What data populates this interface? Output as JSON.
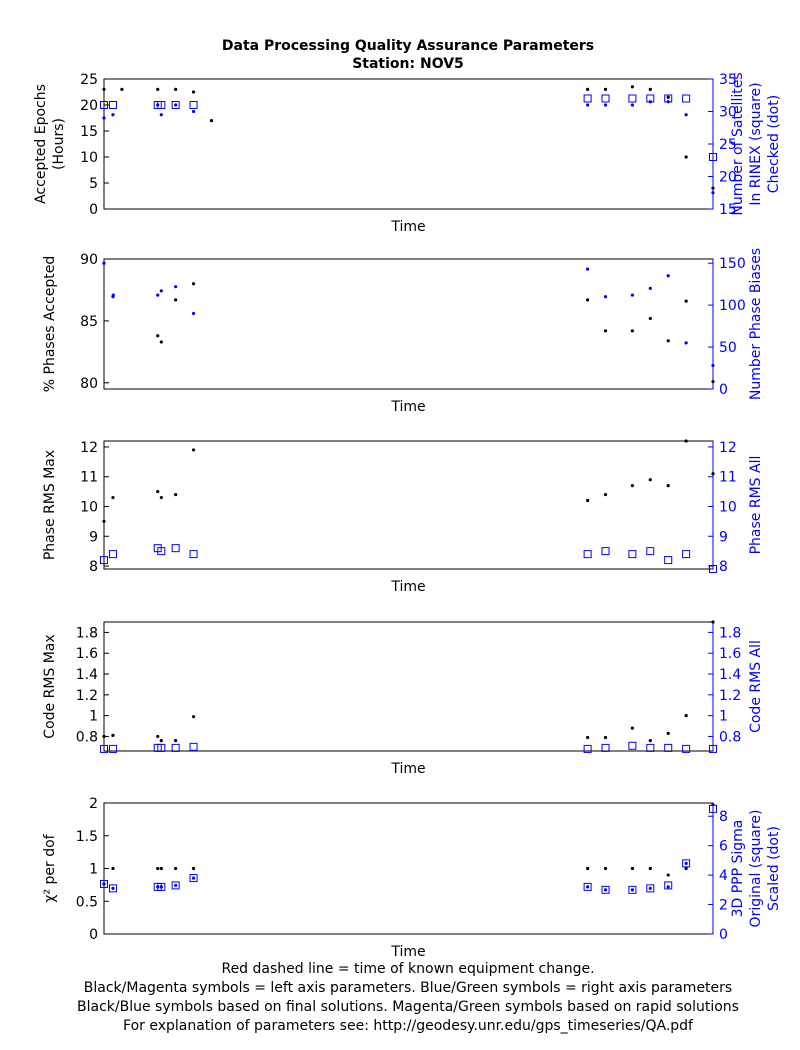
{
  "title": "Data Processing Quality Assurance Parameters",
  "subtitle": "Station: NOV5",
  "footer": [
    "Red dashed line = time of known equipment change.",
    "Black/Magenta symbols = left axis parameters. Blue/Green symbols = right axis parameters",
    "Black/Blue symbols based on final solutions.  Magenta/Green symbols based on rapid solutions",
    "For explanation of parameters see: http://geodesy.unr.edu/gps_timeseries/QA.pdf"
  ],
  "colors": {
    "left": "#000000",
    "right": "#0000ff"
  },
  "chart_data": [
    {
      "type": "scatter",
      "xlabel": "Time",
      "ylabel_left": [
        "Accepted Epochs",
        "(Hours)"
      ],
      "ylabel_right": [
        "Number of Satellites",
        "In RINEX (square)",
        "Checked (dot)"
      ],
      "left_ylim": [
        0,
        25
      ],
      "left_ticks": [
        0,
        5,
        10,
        15,
        20,
        25
      ],
      "right_ylim": [
        15,
        35
      ],
      "right_ticks": [
        15,
        20,
        25,
        30,
        35
      ],
      "series": [
        {
          "axis": "left",
          "marker": "dot",
          "x": [
            0,
            1,
            3,
            4,
            5,
            6,
            27,
            28,
            29.5,
            30.5,
            31.5,
            32.5,
            34
          ],
          "y": [
            23,
            23,
            23,
            23,
            22.5,
            17,
            23,
            23,
            23.5,
            23,
            21.5,
            10,
            4
          ]
        },
        {
          "axis": "right",
          "marker": "dot",
          "x": [
            0,
            0.5,
            3,
            3.2,
            4,
            5,
            27,
            28,
            29.5,
            30.5,
            31.5,
            32.5,
            34
          ],
          "y": [
            29,
            29.5,
            31,
            29.5,
            31,
            30,
            31,
            31,
            31,
            31.5,
            31.5,
            29.5,
            17.5
          ]
        },
        {
          "axis": "right",
          "marker": "square",
          "x": [
            0,
            0.5,
            3,
            3.2,
            4,
            5,
            27,
            28,
            29.5,
            30.5,
            31.5,
            32.5,
            34
          ],
          "y": [
            31,
            31,
            31,
            31,
            31,
            31,
            32,
            32,
            32,
            32,
            32,
            32,
            23
          ]
        }
      ]
    },
    {
      "type": "scatter",
      "xlabel": "Time",
      "ylabel_left": [
        "% Phases Accepted"
      ],
      "ylabel_right": [
        "Number Phase Biases"
      ],
      "left_ylim": [
        79.5,
        90
      ],
      "left_ticks": [
        80,
        85,
        90
      ],
      "right_ylim": [
        0,
        155
      ],
      "right_ticks": [
        0,
        50,
        100,
        150
      ],
      "series": [
        {
          "axis": "left",
          "marker": "dot",
          "x": [
            3,
            3.2,
            4,
            5,
            27,
            28,
            29.5,
            30.5,
            31.5,
            32.5,
            34
          ],
          "y": [
            83.8,
            83.3,
            86.7,
            88,
            86.7,
            84.2,
            84.2,
            85.2,
            83.4,
            86.6,
            80.1
          ]
        },
        {
          "axis": "right",
          "marker": "dot",
          "x": [
            0,
            0.5,
            0.52,
            3,
            3.2,
            4,
            5,
            27,
            28,
            29.5,
            30.5,
            31.5,
            32.5,
            34
          ],
          "y": [
            150,
            110,
            112,
            112,
            117,
            122,
            90,
            143,
            110,
            112,
            120,
            135,
            55,
            28
          ]
        }
      ]
    },
    {
      "type": "scatter",
      "xlabel": "Time",
      "ylabel_left": [
        "Phase RMS Max"
      ],
      "ylabel_right": [
        "Phase RMS All"
      ],
      "left_ylim": [
        7.9,
        12.2
      ],
      "left_ticks": [
        8,
        9,
        10,
        11,
        12
      ],
      "right_ylim": [
        7.9,
        12.2
      ],
      "right_ticks": [
        8,
        9,
        10,
        11,
        12
      ],
      "series": [
        {
          "axis": "left",
          "marker": "dot",
          "x": [
            0,
            0.5,
            3,
            3.2,
            4,
            5,
            27,
            28,
            29.5,
            30.5,
            31.5,
            32.5,
            34
          ],
          "y": [
            9.5,
            10.3,
            10.5,
            10.3,
            10.4,
            11.9,
            10.2,
            10.4,
            10.7,
            10.9,
            10.7,
            12.2,
            11.1
          ]
        },
        {
          "axis": "right",
          "marker": "square",
          "x": [
            0,
            0.5,
            3,
            3.2,
            4,
            5,
            27,
            28,
            29.5,
            30.5,
            31.5,
            32.5,
            34
          ],
          "y": [
            8.2,
            8.4,
            8.6,
            8.5,
            8.6,
            8.4,
            8.4,
            8.5,
            8.4,
            8.5,
            8.2,
            8.4,
            7.9
          ]
        }
      ]
    },
    {
      "type": "scatter",
      "xlabel": "Time",
      "ylabel_left": [
        "Code RMS Max"
      ],
      "ylabel_right": [
        "Code RMS All"
      ],
      "left_ylim": [
        0.66,
        1.9
      ],
      "left_ticks": [
        0.8,
        1,
        1.2,
        1.4,
        1.6,
        1.8
      ],
      "right_ylim": [
        0.66,
        1.9
      ],
      "right_ticks": [
        0.8,
        1,
        1.2,
        1.4,
        1.6,
        1.8
      ],
      "series": [
        {
          "axis": "left",
          "marker": "dot",
          "x": [
            0,
            0.5,
            3,
            3.2,
            4,
            5,
            27,
            28,
            29.5,
            30.5,
            31.5,
            32.5,
            34
          ],
          "y": [
            0.8,
            0.81,
            0.8,
            0.76,
            0.76,
            0.99,
            0.79,
            0.79,
            0.88,
            0.76,
            0.83,
            1.0,
            1.9
          ]
        },
        {
          "axis": "right",
          "marker": "square",
          "x": [
            0,
            0.5,
            3,
            3.2,
            4,
            5,
            27,
            28,
            29.5,
            30.5,
            31.5,
            32.5,
            34
          ],
          "y": [
            0.68,
            0.68,
            0.69,
            0.69,
            0.69,
            0.7,
            0.68,
            0.69,
            0.71,
            0.69,
            0.69,
            0.68,
            0.68
          ]
        }
      ]
    },
    {
      "type": "scatter",
      "xlabel": "Time",
      "ylabel_left": [
        "χ² per dof"
      ],
      "ylabel_right": [
        "3D PPP Sigma",
        "Original (square)",
        "Scaled (dot)"
      ],
      "left_ylim": [
        0,
        2
      ],
      "left_ticks": [
        0,
        0.5,
        1,
        1.5,
        2
      ],
      "right_ylim": [
        0,
        8.9
      ],
      "right_ticks": [
        0,
        2,
        4,
        6,
        8
      ],
      "series": [
        {
          "axis": "left",
          "marker": "dot",
          "x": [
            0.5,
            3,
            3.2,
            4,
            5,
            27,
            28,
            29.5,
            30.5,
            31.5,
            32.5
          ],
          "y": [
            1,
            1,
            1,
            1,
            1,
            1,
            1,
            1,
            1,
            0.9,
            1
          ]
        },
        {
          "axis": "right",
          "marker": "dot",
          "x": [
            0,
            0.5,
            3,
            3.2,
            4,
            5,
            27,
            28,
            29.5,
            30.5,
            31.5,
            32.5,
            34
          ],
          "y": [
            3.4,
            3.1,
            3.2,
            3.2,
            3.3,
            3.8,
            3.2,
            3.0,
            3.0,
            3.1,
            3.2,
            4.8,
            8.8
          ]
        },
        {
          "axis": "right",
          "marker": "square",
          "x": [
            0,
            0.5,
            3,
            3.2,
            4,
            5,
            27,
            28,
            29.5,
            30.5,
            31.5,
            32.5,
            34
          ],
          "y": [
            3.4,
            3.1,
            3.2,
            3.2,
            3.3,
            3.8,
            3.2,
            3.0,
            3.0,
            3.1,
            3.3,
            4.8,
            8.5
          ]
        }
      ]
    }
  ]
}
